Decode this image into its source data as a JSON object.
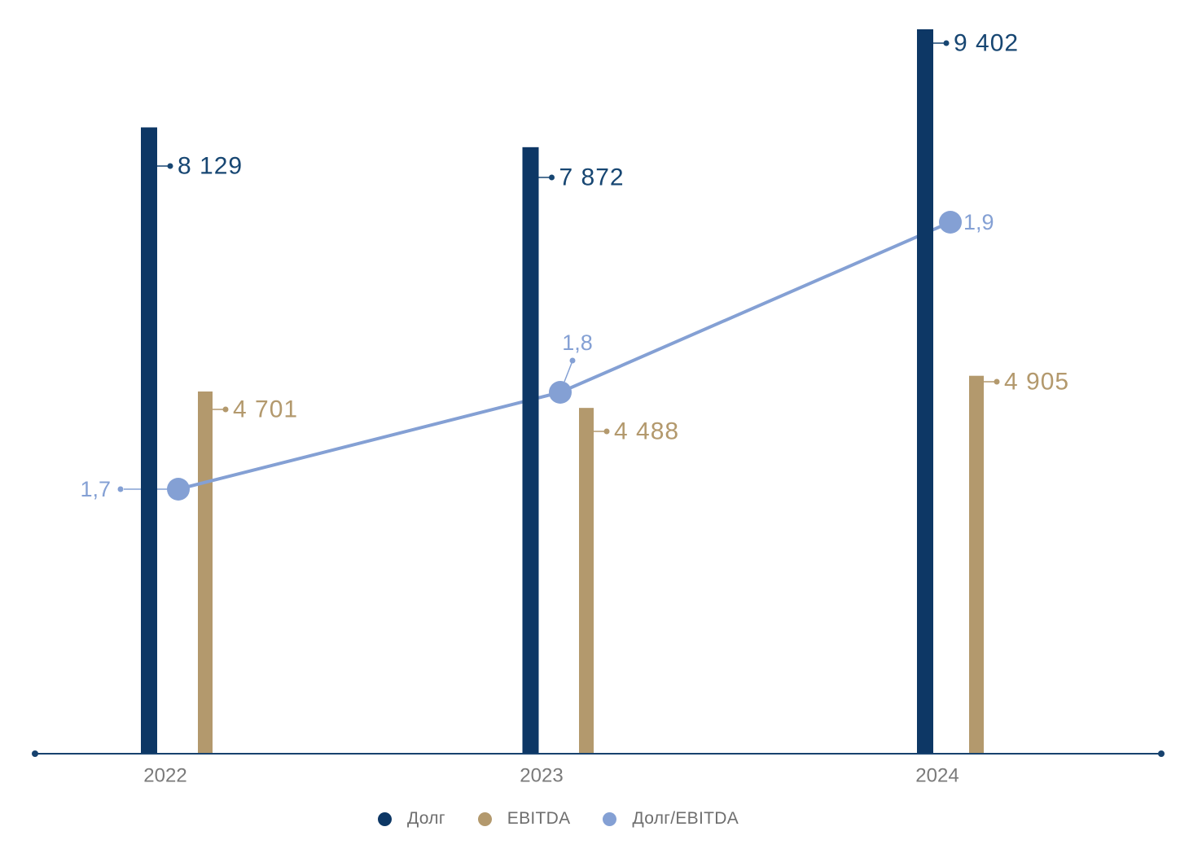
{
  "chart_data": {
    "type": "bar",
    "subtype": "combo-bar-line",
    "title": "",
    "xlabel": "",
    "ylabel": "",
    "categories": [
      "2022",
      "2023",
      "2024"
    ],
    "series": [
      {
        "name": "Долг",
        "type": "bar",
        "values": [
          8129,
          7872,
          9402
        ],
        "labels": [
          "8 129",
          "7 872",
          "9 402"
        ],
        "color": "#0d3765"
      },
      {
        "name": "EBITDA",
        "type": "bar",
        "values": [
          4701,
          4488,
          4905
        ],
        "labels": [
          "4 701",
          "4 488",
          "4 905"
        ],
        "color": "#b3996d"
      },
      {
        "name": "Долг/EBITDA",
        "type": "line",
        "values": [
          1.7,
          1.8,
          1.9
        ],
        "labels": [
          "1,7",
          "1,8",
          "1,9"
        ],
        "color": "#84a0d4"
      }
    ],
    "ylim": [
      0,
      9402
    ],
    "grid": false,
    "legend_position": "bottom",
    "axis_color": "#17426e",
    "tick_label_color": "#7a7a7a"
  },
  "x_axis": {
    "labels": [
      "2022",
      "2023",
      "2024"
    ]
  },
  "legend": {
    "items": [
      {
        "label": "Долг",
        "color": "#0d3765"
      },
      {
        "label": "EBITDA",
        "color": "#b3996d"
      },
      {
        "label": "Долг/EBITDA",
        "color": "#84a0d4"
      }
    ]
  }
}
